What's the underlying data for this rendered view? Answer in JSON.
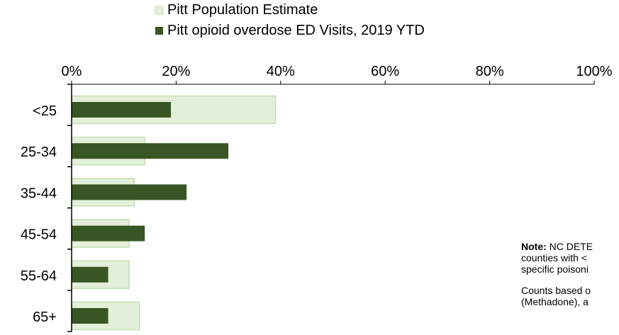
{
  "chart_data": {
    "type": "bar",
    "orientation": "horizontal",
    "categories": [
      "<25",
      "25-34",
      "35-44",
      "45-54",
      "55-64",
      "65+"
    ],
    "series": [
      {
        "name": "Pitt Population Estimate",
        "values": [
          39,
          14,
          12,
          11,
          11,
          13
        ],
        "color": "#e2efd9",
        "stroke": "#c5dfb3"
      },
      {
        "name": "Pitt opioid overdose ED Visits, 2019 YTD",
        "values": [
          19,
          30,
          22,
          14,
          7,
          7
        ],
        "color": "#375623"
      }
    ],
    "xlim": [
      0,
      100
    ],
    "x_ticks": [
      "0%",
      "20%",
      "40%",
      "60%",
      "80%",
      "100%"
    ],
    "legend_position": "top",
    "grid": false
  },
  "note": {
    "line1_bold": "Note:",
    "line1_text": " NC DETE",
    "line2": "counties with <",
    "line3": "specific poisoni",
    "line4": "Counts based o",
    "line5": "(Methadone), a"
  }
}
